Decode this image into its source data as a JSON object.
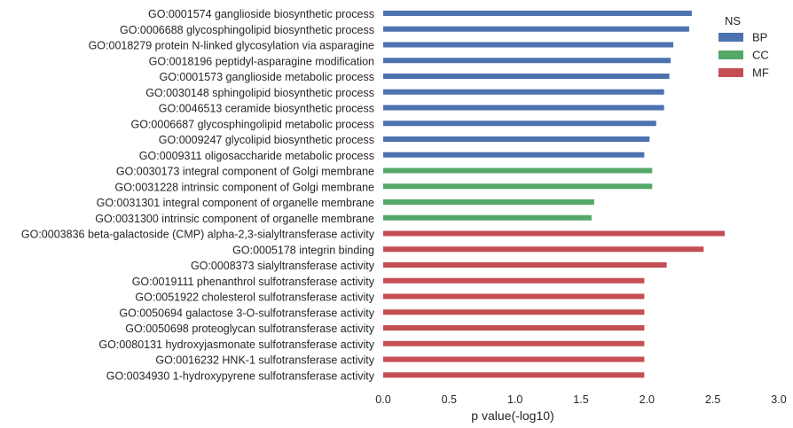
{
  "chart_data": {
    "type": "bar",
    "orientation": "horizontal",
    "xlabel": "p value(-log10)",
    "xlim": [
      0,
      3.0
    ],
    "xticks": [
      "0.0",
      "0.5",
      "1.0",
      "1.5",
      "2.0",
      "2.5",
      "3.0"
    ],
    "grid": false,
    "legend": {
      "title": "NS",
      "placement": "top-right",
      "entries": [
        {
          "name": "BP",
          "color": "#4c72b0"
        },
        {
          "name": "CC",
          "color": "#55a868"
        },
        {
          "name": "MF",
          "color": "#c44e52"
        }
      ]
    },
    "categories": [
      "GO:0001574 ganglioside biosynthetic process",
      "GO:0006688 glycosphingolipid biosynthetic process",
      "GO:0018279 protein N-linked glycosylation via asparagine",
      "GO:0018196 peptidyl-asparagine modification",
      "GO:0001573 ganglioside metabolic process",
      "GO:0030148 sphingolipid biosynthetic process",
      "GO:0046513 ceramide biosynthetic process",
      "GO:0006687 glycosphingolipid metabolic process",
      "GO:0009247 glycolipid biosynthetic process",
      "GO:0009311 oligosaccharide metabolic process",
      "GO:0030173 integral component of Golgi membrane",
      "GO:0031228 intrinsic component of Golgi membrane",
      "GO:0031301 integral component of organelle membrane",
      "GO:0031300 intrinsic component of organelle membrane",
      "GO:0003836 beta-galactoside (CMP) alpha-2,3-sialyltransferase activity",
      "GO:0005178 integrin binding",
      "GO:0008373 sialyltransferase activity",
      "GO:0019111 phenanthrol sulfotransferase activity",
      "GO:0051922 cholesterol sulfotransferase activity",
      "GO:0050694 galactose 3-O-sulfotransferase activity",
      "GO:0050698 proteoglycan sulfotransferase activity",
      "GO:0080131 hydroxyjasmonate sulfotransferase activity",
      "GO:0016232 HNK-1 sulfotransferase activity",
      "GO:0034930 1-hydroxypyrene sulfotransferase activity"
    ],
    "values": [
      2.34,
      2.32,
      2.2,
      2.18,
      2.17,
      2.13,
      2.13,
      2.07,
      2.02,
      1.98,
      2.04,
      2.04,
      1.6,
      1.58,
      2.59,
      2.43,
      2.15,
      1.98,
      1.98,
      1.98,
      1.98,
      1.98,
      1.98,
      1.98
    ],
    "groups": [
      "BP",
      "BP",
      "BP",
      "BP",
      "BP",
      "BP",
      "BP",
      "BP",
      "BP",
      "BP",
      "CC",
      "CC",
      "CC",
      "CC",
      "MF",
      "MF",
      "MF",
      "MF",
      "MF",
      "MF",
      "MF",
      "MF",
      "MF",
      "MF"
    ]
  }
}
